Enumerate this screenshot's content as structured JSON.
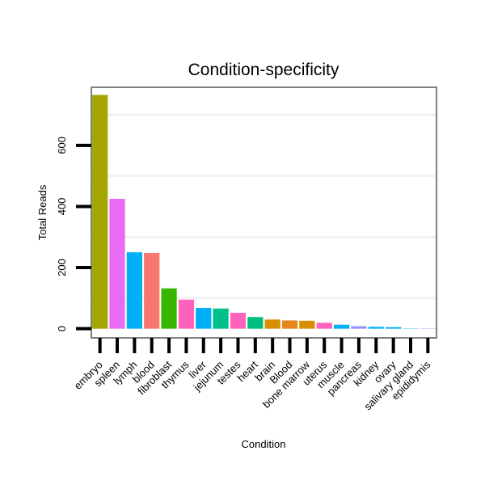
{
  "chart_data": {
    "type": "bar",
    "title": "Condition-specificity",
    "xlabel": "Condition",
    "ylabel": "Total Reads",
    "ylim": [
      -30,
      790
    ],
    "yticks": [
      0,
      200,
      400,
      600
    ],
    "grid": true,
    "categories": [
      "embryo",
      "spleen",
      "lymph",
      "blood",
      "fibroblast",
      "thymus",
      "liver",
      "jejunum",
      "testes",
      "heart",
      "brain",
      "Blood",
      "bone marrow",
      "uterus",
      "muscle",
      "pancreas",
      "kidney",
      "ovary",
      "salivary gland",
      "epididymis"
    ],
    "values": [
      765,
      425,
      250,
      248,
      132,
      95,
      68,
      66,
      52,
      38,
      30,
      27,
      26,
      19,
      13,
      8,
      6,
      5,
      1,
      1
    ],
    "colors": [
      "#a3a500",
      "#e76bf3",
      "#00b0f6",
      "#f8766d",
      "#39b600",
      "#ff62bc",
      "#00b0f6",
      "#00c08b",
      "#ff62bc",
      "#00bf7d",
      "#d89000",
      "#e7861b",
      "#d89000",
      "#ff62bc",
      "#00b0f6",
      "#9590ff",
      "#00b0f6",
      "#00b0f6",
      "#00bcd8",
      "#9590ff"
    ]
  }
}
